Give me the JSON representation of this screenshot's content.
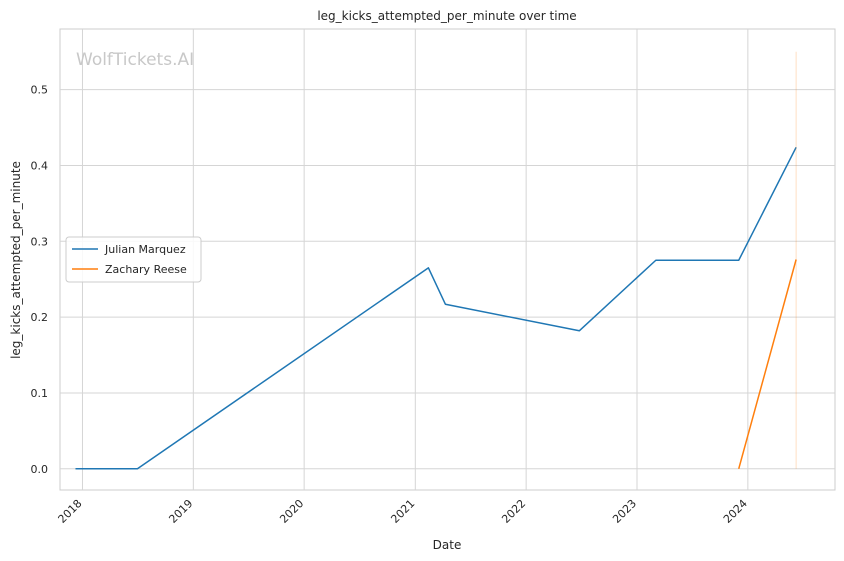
{
  "chart_data": {
    "type": "line",
    "title": "leg_kicks_attempted_per_minute over time",
    "xlabel": "Date",
    "ylabel": "leg_kicks_attempted_per_minute",
    "watermark": "WolfTickets.AI",
    "x_tick_labels": [
      "2018",
      "2019",
      "2020",
      "2021",
      "2022",
      "2023",
      "2024"
    ],
    "y_ticks": [
      0.0,
      0.1,
      0.2,
      0.3,
      0.4,
      0.5
    ],
    "y_tick_labels": [
      "0.0",
      "0.1",
      "0.2",
      "0.3",
      "0.4",
      "0.5"
    ],
    "xlim": [
      "2017-10-19",
      "2024-10-14"
    ],
    "ylim": [
      -0.028,
      0.58
    ],
    "grid": true,
    "legend_position": "center-left",
    "series": [
      {
        "name": "Julian Marquez",
        "color": "#1f77b4",
        "points": [
          {
            "x": "2017-12-09",
            "y": 0.0
          },
          {
            "x": "2018-07-01",
            "y": 0.0
          },
          {
            "x": "2021-02-13",
            "y": 0.265
          },
          {
            "x": "2021-04-10",
            "y": 0.217
          },
          {
            "x": "2022-06-25",
            "y": 0.182
          },
          {
            "x": "2023-03-04",
            "y": 0.275
          },
          {
            "x": "2023-12-02",
            "y": 0.275
          },
          {
            "x": "2024-06-08",
            "y": 0.424
          }
        ]
      },
      {
        "name": "Zachary Reese",
        "color": "#ff7f0e",
        "points": [
          {
            "x": "2023-12-02",
            "y": 0.0
          },
          {
            "x": "2024-06-08",
            "y": 0.276
          }
        ]
      }
    ],
    "annotations": [
      {
        "type": "vline",
        "x": "2024-06-08",
        "color": "#ff7f0e",
        "y_range": [
          0.0,
          0.55
        ]
      }
    ]
  }
}
